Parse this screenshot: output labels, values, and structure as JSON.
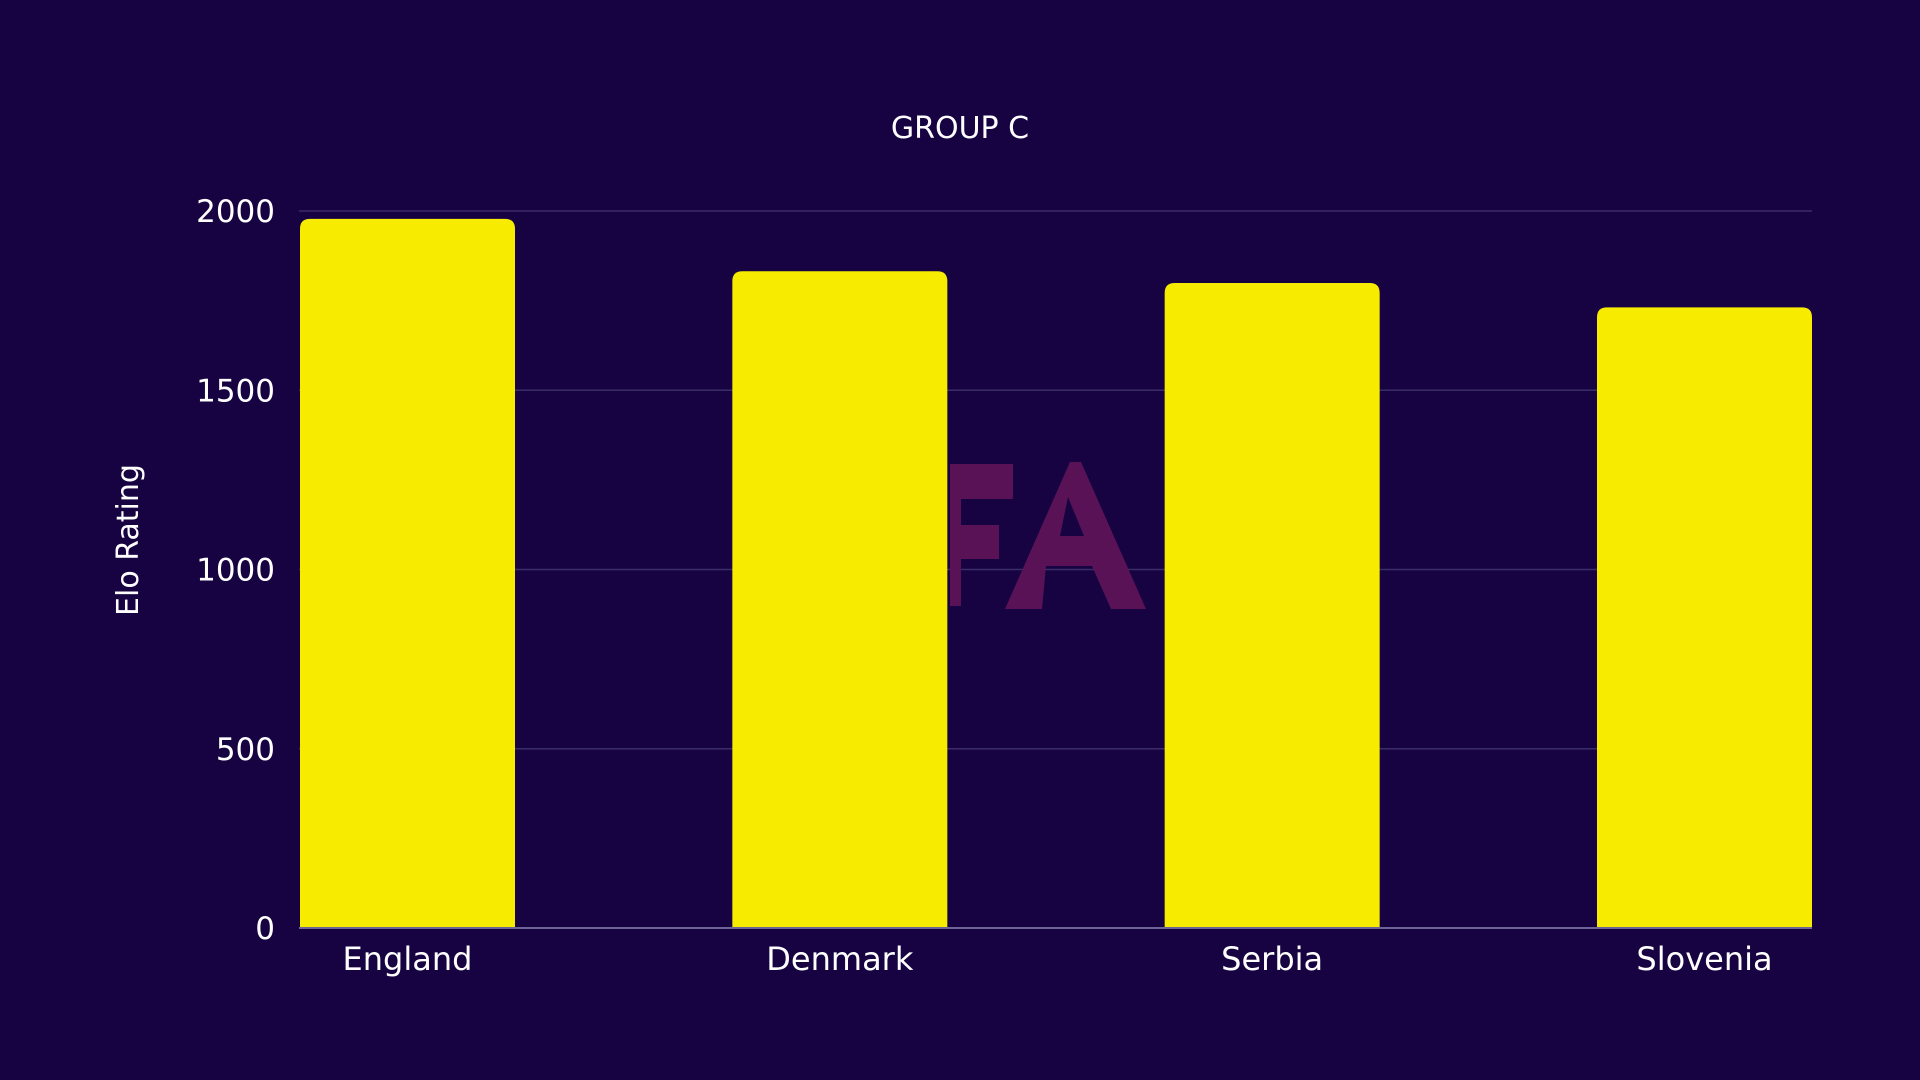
{
  "chart_data": {
    "type": "bar",
    "title": "GROUP C",
    "ylabel": "Elo Rating",
    "xlabel": "",
    "categories": [
      "England",
      "Denmark",
      "Serbia",
      "Slovenia"
    ],
    "values": [
      1978,
      1832,
      1799,
      1731
    ],
    "ylim": [
      0,
      2000
    ],
    "yticks": [
      0,
      500,
      1000,
      1500,
      2000
    ],
    "grid": true,
    "legend": "none"
  },
  "colors": {
    "background": "#170342",
    "bar": "#f7eb00",
    "watermark": "#5a1256"
  },
  "watermark": {
    "text": "FA"
  }
}
